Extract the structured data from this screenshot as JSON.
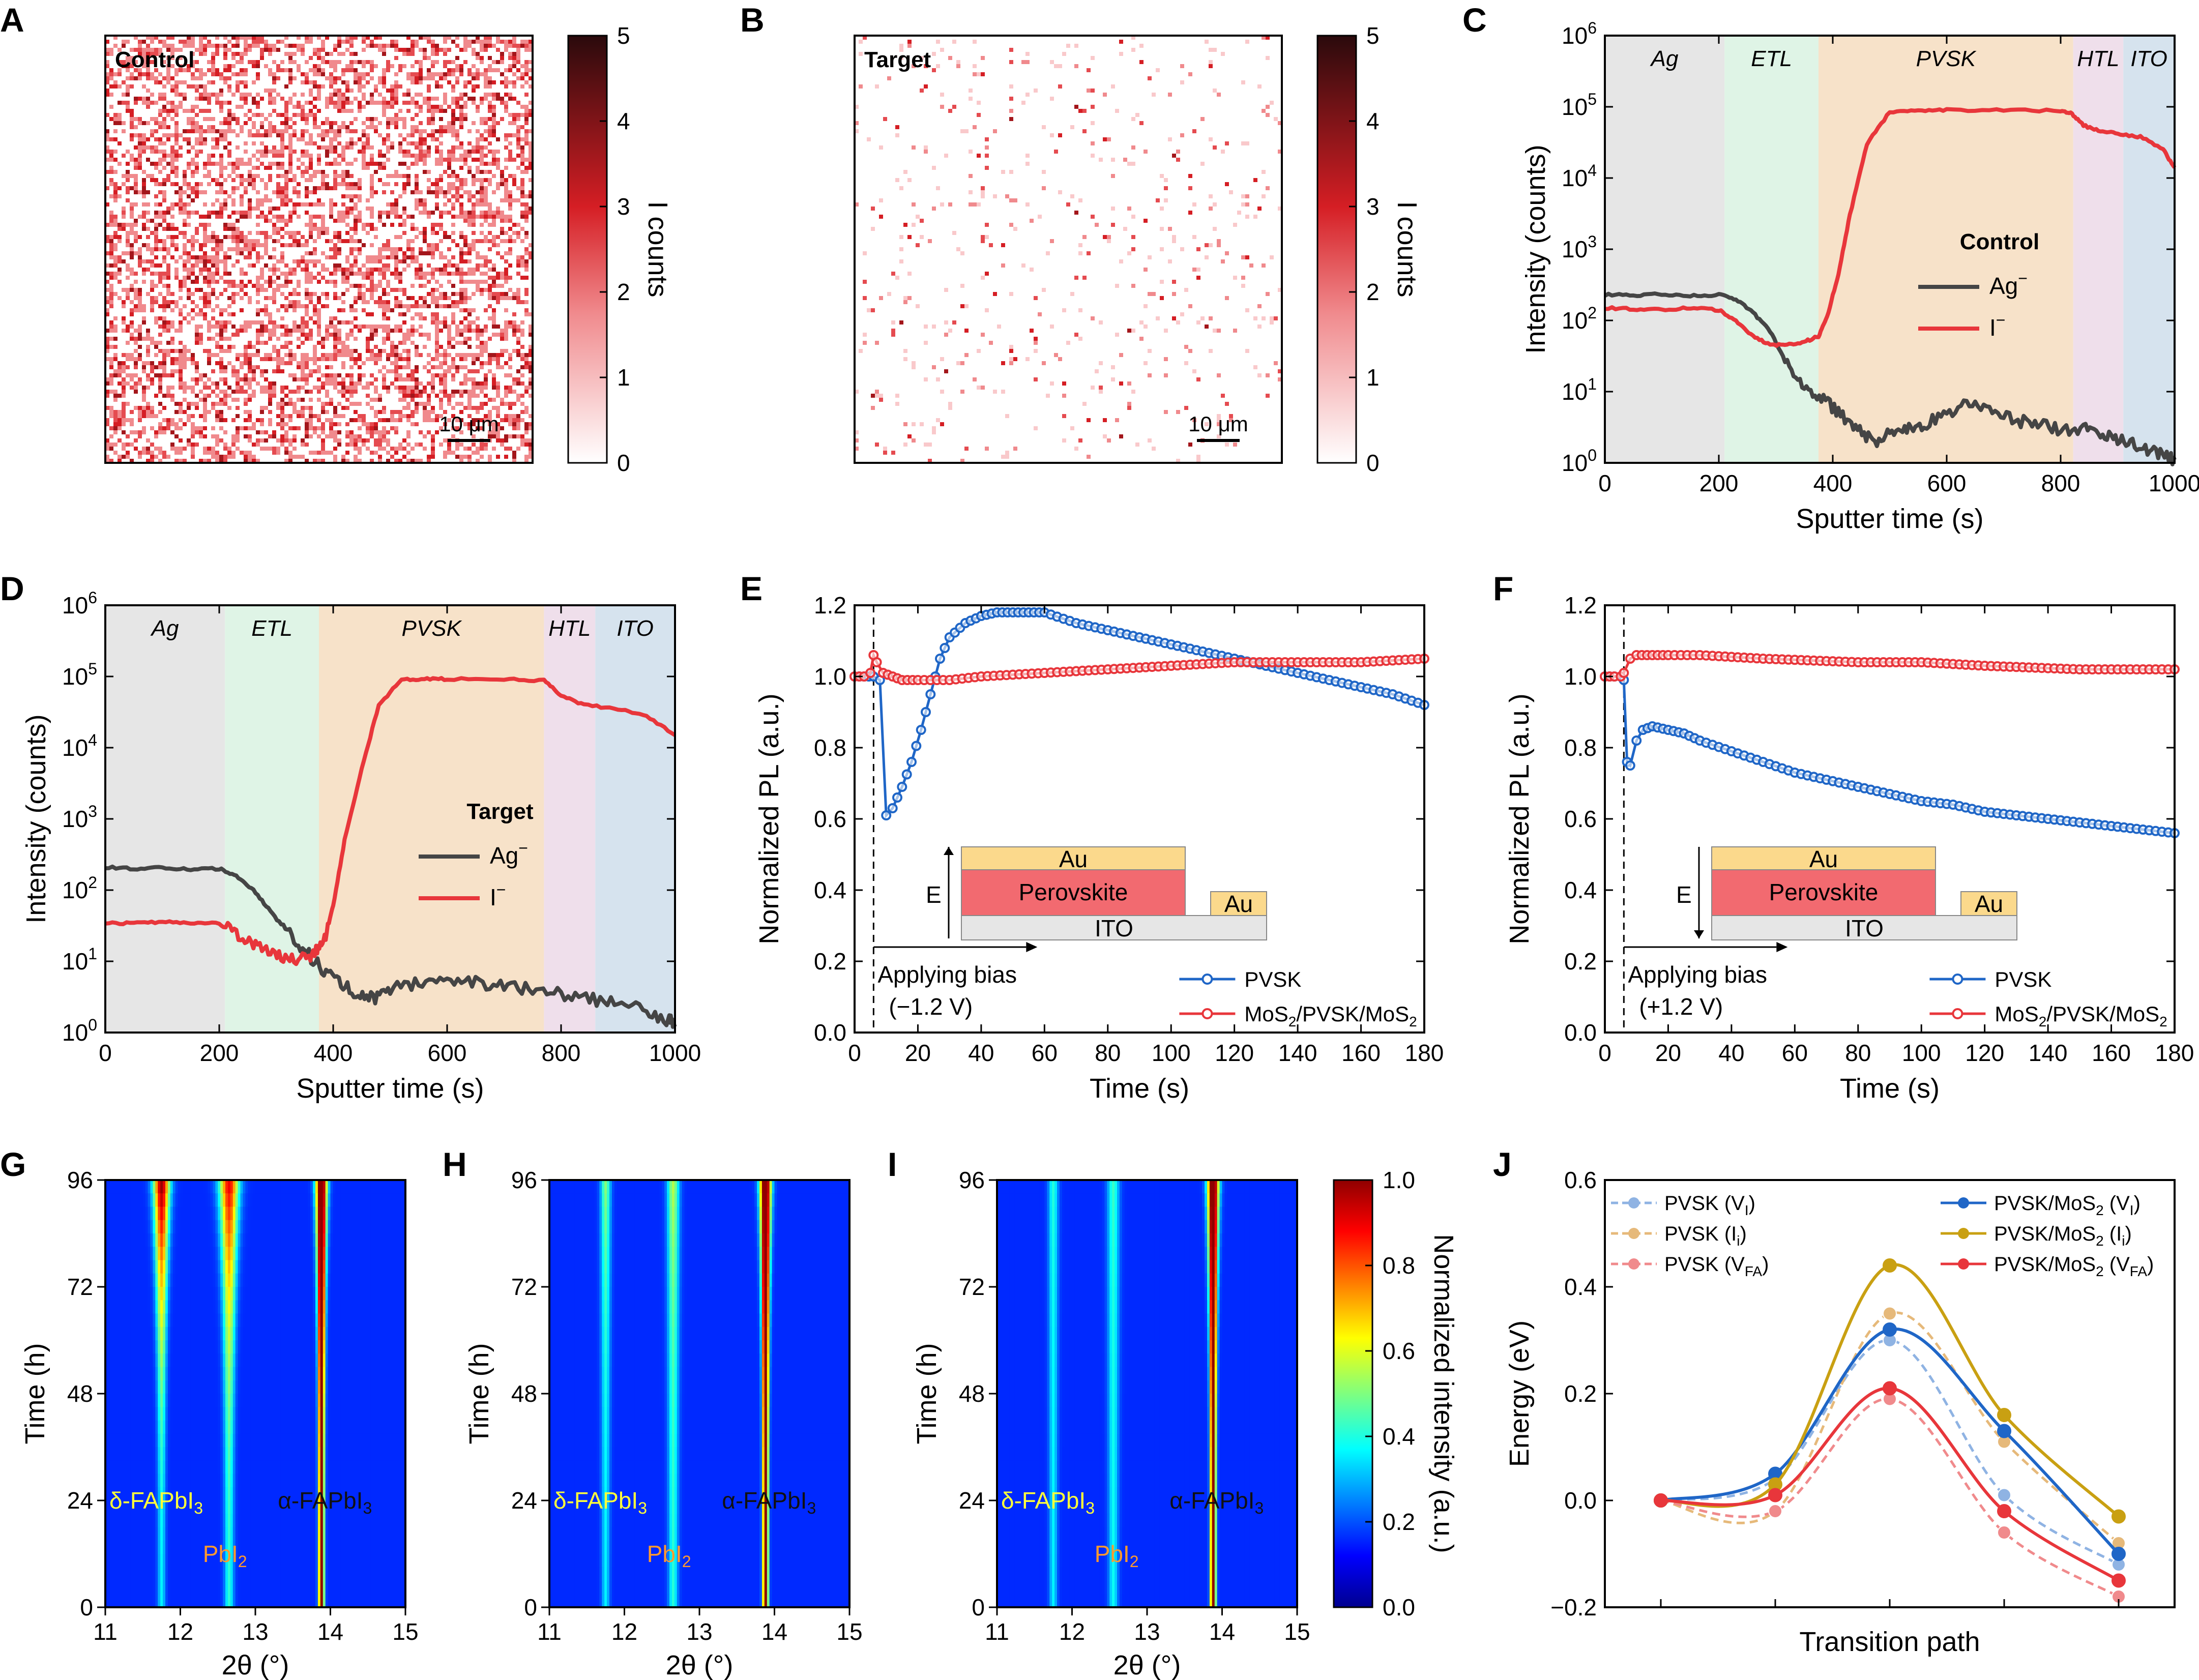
{
  "panels": {
    "A": {
      "label": "A",
      "title": "Control",
      "scalebar": "10 μm",
      "colorbar_label": "I counts",
      "colorbar_ticks": [
        "0",
        "1",
        "2",
        "3",
        "4",
        "5"
      ],
      "density": 0.55,
      "colors": {
        "low": "#ffffff",
        "mid": "#d51e24",
        "high": "#2a0a0c"
      }
    },
    "B": {
      "label": "B",
      "title": "Target",
      "scalebar": "10 μm",
      "colorbar_label": "I counts",
      "colorbar_ticks": [
        "0",
        "1",
        "2",
        "3",
        "4",
        "5"
      ],
      "density": 0.05
    },
    "C": {
      "label": "C"
    },
    "D": {
      "label": "D"
    },
    "E": {
      "label": "E"
    },
    "F": {
      "label": "F"
    },
    "G": {
      "label": "G"
    },
    "H": {
      "label": "H"
    },
    "I": {
      "label": "I"
    },
    "J": {
      "label": "J"
    }
  },
  "chart_data": [
    {
      "id": "C",
      "type": "line",
      "title": "Control",
      "xlabel": "Sputter time (s)",
      "ylabel": "Intensity (counts)",
      "xlim": [
        0,
        1000
      ],
      "ylim_log10": [
        0,
        6
      ],
      "x_ticks": [
        "0",
        "200",
        "400",
        "600",
        "800",
        "1000"
      ],
      "y_ticks": [
        "10",
        "10",
        "10",
        "10",
        "10",
        "10",
        "10"
      ],
      "y_tick_exponents": [
        "0",
        "1",
        "2",
        "3",
        "4",
        "5",
        "6"
      ],
      "layers": [
        {
          "name": "Ag",
          "from": 0,
          "to": 210,
          "color": "#e6e6e6"
        },
        {
          "name": "ETL",
          "from": 210,
          "to": 375,
          "color": "#dff4e6"
        },
        {
          "name": "PVSK",
          "from": 375,
          "to": 822,
          "color": "#f7e2c9"
        },
        {
          "name": "HTL",
          "from": 822,
          "to": 910,
          "color": "#efdfeb"
        },
        {
          "name": "ITO",
          "from": 910,
          "to": 1000,
          "color": "#d6e3ee"
        }
      ],
      "legend_title": "Control",
      "series": [
        {
          "name": "Ag",
          "sup": "−",
          "color": "#454545",
          "x": [
            0,
            50,
            100,
            150,
            200,
            230,
            260,
            290,
            320,
            350,
            380,
            410,
            440,
            470,
            500,
            530,
            560,
            600,
            640,
            680,
            720,
            760,
            800,
            840,
            870,
            900,
            930,
            960,
            990,
            1000
          ],
          "y": [
            230,
            225,
            235,
            220,
            230,
            200,
            130,
            70,
            25,
            12,
            8,
            5,
            3,
            2,
            2.5,
            3,
            3.5,
            5,
            7,
            6,
            4,
            3.5,
            3,
            3,
            2.5,
            2.2,
            1.8,
            1.4,
            1.2,
            1.1
          ]
        },
        {
          "name": "I",
          "sup": "−",
          "color": "#e8363b",
          "x": [
            0,
            50,
            100,
            150,
            200,
            230,
            260,
            290,
            320,
            350,
            375,
            390,
            410,
            430,
            460,
            500,
            550,
            600,
            700,
            800,
            820,
            840,
            870,
            900,
            940,
            980,
            1000
          ],
          "y": [
            150,
            145,
            140,
            150,
            140,
            100,
            60,
            45,
            45,
            50,
            60,
            110,
            450,
            3000,
            30000,
            85000,
            90000,
            90000,
            90000,
            88000,
            80000,
            55000,
            45000,
            42000,
            38000,
            25000,
            14000
          ]
        }
      ]
    },
    {
      "id": "D",
      "type": "line",
      "title": "Target",
      "xlabel": "Sputter time (s)",
      "ylabel": "Intensity (counts)",
      "xlim": [
        0,
        1000
      ],
      "ylim_log10": [
        0,
        6
      ],
      "x_ticks": [
        "0",
        "200",
        "400",
        "600",
        "800",
        "1000"
      ],
      "y_ticks": [
        "10",
        "10",
        "10",
        "10",
        "10",
        "10",
        "10"
      ],
      "y_tick_exponents": [
        "0",
        "1",
        "2",
        "3",
        "4",
        "5",
        "6"
      ],
      "layers": [
        {
          "name": "Ag",
          "from": 0,
          "to": 210,
          "color": "#e6e6e6"
        },
        {
          "name": "ETL",
          "from": 210,
          "to": 375,
          "color": "#dff4e6"
        },
        {
          "name": "PVSK",
          "from": 375,
          "to": 770,
          "color": "#f7e2c9"
        },
        {
          "name": "HTL",
          "from": 770,
          "to": 860,
          "color": "#efdfeb"
        },
        {
          "name": "ITO",
          "from": 860,
          "to": 1000,
          "color": "#d6e3ee"
        }
      ],
      "legend_title": "Target",
      "series": [
        {
          "name": "Ag",
          "sup": "−",
          "color": "#454545",
          "x": [
            0,
            50,
            100,
            150,
            200,
            230,
            260,
            290,
            320,
            350,
            380,
            410,
            440,
            470,
            500,
            550,
            600,
            650,
            700,
            750,
            800,
            850,
            900,
            950,
            990,
            1000
          ],
          "y": [
            210,
            200,
            205,
            195,
            200,
            160,
            100,
            50,
            25,
            14,
            8,
            5,
            3.5,
            3,
            4,
            5,
            6,
            5,
            4.5,
            4,
            3.5,
            3,
            2.5,
            2,
            1.5,
            1.2
          ]
        },
        {
          "name": "I",
          "sup": "−",
          "color": "#e8363b",
          "x": [
            0,
            50,
            100,
            150,
            200,
            230,
            260,
            290,
            320,
            350,
            370,
            385,
            400,
            420,
            450,
            480,
            520,
            560,
            600,
            700,
            770,
            800,
            840,
            900,
            950,
            1000
          ],
          "y": [
            35,
            34,
            36,
            35,
            34,
            25,
            18,
            14,
            10,
            11,
            14,
            20,
            60,
            500,
            5000,
            40000,
            90000,
            92000,
            92000,
            91000,
            88000,
            55000,
            40000,
            35000,
            28000,
            15000
          ]
        }
      ]
    },
    {
      "id": "E",
      "type": "line",
      "xlabel": "Time (s)",
      "ylabel": "Normalized PL (a.u.)",
      "xlim": [
        0,
        180
      ],
      "ylim": [
        0.0,
        1.2
      ],
      "x_ticks": [
        "0",
        "20",
        "40",
        "60",
        "80",
        "100",
        "120",
        "140",
        "160",
        "180"
      ],
      "y_ticks": [
        "0.0",
        "0.2",
        "0.4",
        "0.6",
        "0.8",
        "1.0",
        "1.2"
      ],
      "bias_time": 6,
      "annotation": [
        "Applying bias",
        "(−1.2 V)"
      ],
      "inset": {
        "top": "Au",
        "middle": "Perovskite",
        "bottom": "ITO",
        "contact": "Au",
        "field": "E",
        "field_direction": "up"
      },
      "series": [
        {
          "name": "PVSK",
          "color": "#1f66c7",
          "x": [
            0,
            3,
            6,
            8,
            10,
            12,
            15,
            18,
            21,
            24,
            27,
            30,
            35,
            40,
            45,
            50,
            55,
            60,
            70,
            80,
            90,
            100,
            110,
            120,
            130,
            140,
            150,
            160,
            170,
            180
          ],
          "y": [
            1.0,
            1.0,
            1.0,
            0.99,
            0.61,
            0.63,
            0.69,
            0.76,
            0.85,
            0.95,
            1.05,
            1.11,
            1.15,
            1.17,
            1.18,
            1.18,
            1.18,
            1.18,
            1.15,
            1.13,
            1.11,
            1.09,
            1.07,
            1.05,
            1.03,
            1.01,
            0.99,
            0.97,
            0.95,
            0.92
          ]
        },
        {
          "name": "MoS2/PVSK/MoS2",
          "color": "#e8363b",
          "x": [
            0,
            3,
            5,
            6,
            7,
            9,
            12,
            15,
            20,
            30,
            40,
            60,
            80,
            100,
            120,
            140,
            160,
            180
          ],
          "y": [
            1.0,
            1.0,
            1.01,
            1.06,
            1.04,
            1.01,
            1.0,
            0.99,
            0.99,
            0.99,
            1.0,
            1.01,
            1.02,
            1.03,
            1.04,
            1.04,
            1.04,
            1.05
          ]
        }
      ]
    },
    {
      "id": "F",
      "type": "line",
      "xlabel": "Time (s)",
      "ylabel": "Normalized PL (a.u.)",
      "xlim": [
        0,
        180
      ],
      "ylim": [
        0.0,
        1.2
      ],
      "x_ticks": [
        "0",
        "20",
        "40",
        "60",
        "80",
        "100",
        "120",
        "140",
        "160",
        "180"
      ],
      "y_ticks": [
        "0.0",
        "0.2",
        "0.4",
        "0.6",
        "0.8",
        "1.0",
        "1.2"
      ],
      "bias_time": 6,
      "annotation": [
        "Applying bias",
        "(+1.2 V)"
      ],
      "inset": {
        "top": "Au",
        "middle": "Perovskite",
        "bottom": "ITO",
        "contact": "Au",
        "field": "E",
        "field_direction": "down"
      },
      "series": [
        {
          "name": "PVSK",
          "color": "#1f66c7",
          "x": [
            0,
            3,
            5,
            6,
            7,
            8,
            10,
            12,
            15,
            20,
            25,
            30,
            40,
            50,
            60,
            70,
            80,
            90,
            100,
            110,
            120,
            130,
            140,
            150,
            160,
            170,
            180
          ],
          "y": [
            1.0,
            1.0,
            1.0,
            0.99,
            0.76,
            0.75,
            0.82,
            0.85,
            0.86,
            0.85,
            0.84,
            0.82,
            0.79,
            0.76,
            0.73,
            0.71,
            0.69,
            0.67,
            0.65,
            0.64,
            0.62,
            0.61,
            0.6,
            0.59,
            0.58,
            0.57,
            0.56
          ]
        },
        {
          "name": "MoS2/PVSK/MoS2",
          "color": "#e8363b",
          "x": [
            0,
            3,
            5,
            6,
            8,
            10,
            15,
            20,
            30,
            50,
            80,
            100,
            120,
            150,
            180
          ],
          "y": [
            1.0,
            1.0,
            1.0,
            1.01,
            1.05,
            1.06,
            1.06,
            1.06,
            1.06,
            1.05,
            1.04,
            1.04,
            1.03,
            1.02,
            1.02
          ]
        }
      ]
    },
    {
      "id": "G",
      "type": "heatmap",
      "xlabel": "2θ (°)",
      "ylabel": "Time (h)",
      "xlim": [
        11,
        15
      ],
      "ylim": [
        0,
        96
      ],
      "x_ticks": [
        "11",
        "12",
        "13",
        "14",
        "15"
      ],
      "y_ticks": [
        "0",
        "24",
        "48",
        "72",
        "96"
      ],
      "labels": {
        "delta": "δ-FAPbI",
        "pbi2": "PbI",
        "alpha": "α-FAPbI",
        "sub3": "3",
        "sub2": "2"
      },
      "peaks": [
        {
          "name": "delta",
          "pos": 11.75,
          "i0": 0.2,
          "i1": 0.85,
          "width": 0.05
        },
        {
          "name": "pbi2",
          "pos": 12.65,
          "i0": 0.25,
          "i1": 0.75,
          "width": 0.06
        },
        {
          "name": "alpha",
          "pos": 13.88,
          "i0": 1.0,
          "i1": 1.0,
          "width": 0.035
        }
      ]
    },
    {
      "id": "H",
      "type": "heatmap",
      "xlabel": "2θ (°)",
      "ylabel": "Time (h)",
      "xlim": [
        11,
        15
      ],
      "ylim": [
        0,
        96
      ],
      "x_ticks": [
        "11",
        "12",
        "13",
        "14",
        "15"
      ],
      "y_ticks": [
        "0",
        "24",
        "48",
        "72",
        "96"
      ],
      "labels": {
        "delta": "δ-FAPbI",
        "pbi2": "PbI",
        "alpha": "α-FAPbI",
        "sub3": "3",
        "sub2": "2"
      },
      "peaks": [
        {
          "name": "delta",
          "pos": 11.75,
          "i0": 0.2,
          "i1": 0.35,
          "width": 0.05
        },
        {
          "name": "pbi2",
          "pos": 12.65,
          "i0": 0.25,
          "i1": 0.4,
          "width": 0.06
        },
        {
          "name": "alpha",
          "pos": 13.88,
          "i0": 1.0,
          "i1": 1.0,
          "width": 0.035
        }
      ]
    },
    {
      "id": "I",
      "type": "heatmap",
      "xlabel": "2θ (°)",
      "ylabel": "Time (h)",
      "xlim": [
        11,
        15
      ],
      "ylim": [
        0,
        96
      ],
      "x_ticks": [
        "11",
        "12",
        "13",
        "14",
        "15"
      ],
      "y_ticks": [
        "0",
        "24",
        "48",
        "72",
        "96"
      ],
      "labels": {
        "delta": "δ-FAPbI",
        "pbi2": "PbI",
        "alpha": "α-FAPbI",
        "sub3": "3",
        "sub2": "2"
      },
      "colorbar_label": "Normalized intensity (a.u.)",
      "colorbar_ticks": [
        "0.0",
        "0.2",
        "0.4",
        "0.6",
        "0.8",
        "1.0"
      ],
      "peaks": [
        {
          "name": "delta",
          "pos": 11.75,
          "i0": 0.2,
          "i1": 0.25,
          "width": 0.05
        },
        {
          "name": "pbi2",
          "pos": 12.55,
          "i0": 0.22,
          "i1": 0.27,
          "width": 0.06
        },
        {
          "name": "alpha",
          "pos": 13.88,
          "i0": 1.0,
          "i1": 1.0,
          "width": 0.035
        }
      ]
    },
    {
      "id": "J",
      "type": "line",
      "xlabel": "Transition path",
      "ylabel": "Energy (eV)",
      "ylim": [
        -0.2,
        0.6
      ],
      "y_ticks": [
        "−0.2",
        "0.0",
        "0.2",
        "0.4",
        "0.6"
      ],
      "x": [
        0,
        1,
        2,
        3,
        4
      ],
      "series": [
        {
          "name": "PVSK (V",
          "sub": "I",
          "suffix": ")",
          "color": "#8fb3e3",
          "dashed": true,
          "y": [
            0.0,
            0.04,
            0.3,
            0.01,
            -0.12
          ]
        },
        {
          "name": "PVSK (I",
          "sub": "i",
          "suffix": ")",
          "color": "#e6b97a",
          "dashed": true,
          "y": [
            0.0,
            -0.02,
            0.35,
            0.11,
            -0.08
          ]
        },
        {
          "name": "PVSK (V",
          "sub": "FA",
          "suffix": ")",
          "color": "#f08a8c",
          "dashed": true,
          "y": [
            0.0,
            -0.02,
            0.19,
            -0.06,
            -0.18
          ]
        },
        {
          "name": "PVSK/MoS",
          "sub2": "2",
          "tail": " (V",
          "sub": "I",
          "suffix": ")",
          "color": "#1f66c7",
          "dashed": false,
          "y": [
            0.0,
            0.05,
            0.32,
            0.13,
            -0.1
          ]
        },
        {
          "name": "PVSK/MoS",
          "sub2": "2",
          "tail": " (I",
          "sub": "i",
          "suffix": ")",
          "color": "#c9a012",
          "dashed": false,
          "y": [
            0.0,
            0.03,
            0.44,
            0.16,
            -0.03
          ]
        },
        {
          "name": "PVSK/MoS",
          "sub2": "2",
          "tail": " (V",
          "sub": "FA",
          "suffix": ")",
          "color": "#e8363b",
          "dashed": false,
          "y": [
            0.0,
            0.01,
            0.21,
            -0.02,
            -0.15
          ]
        }
      ]
    }
  ]
}
